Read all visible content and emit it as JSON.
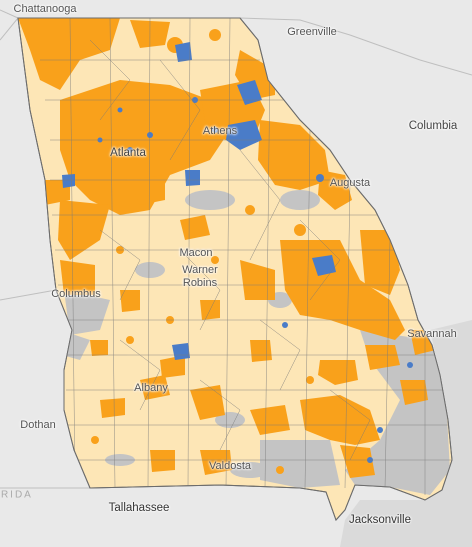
{
  "colors": {
    "background": "#e9e9e9",
    "ocean": "#dadada",
    "state_fill": "#fde6b6",
    "orange": "#f9a11b",
    "blue": "#4a7cc8",
    "gray": "#c4c4c4",
    "county_line": "#7a7a7a"
  },
  "region": "Georgia",
  "neighbor_labels": {
    "florida": "ORIDA"
  },
  "cities": {
    "chattanooga": "Chattanooga",
    "greenville": "Greenville",
    "columbia": "Columbia",
    "atlanta": "Atlanta",
    "athens": "Athens",
    "augusta": "Augusta",
    "macon": "Macon",
    "warner": "Warner",
    "robins": "Robins",
    "columbus": "Columbus",
    "savannah": "Savannah",
    "albany": "Albany",
    "dothan": "Dothan",
    "valdosta": "Valdosta",
    "tallahassee": "Tallahassee",
    "jacksonville": "Jacksonville"
  }
}
